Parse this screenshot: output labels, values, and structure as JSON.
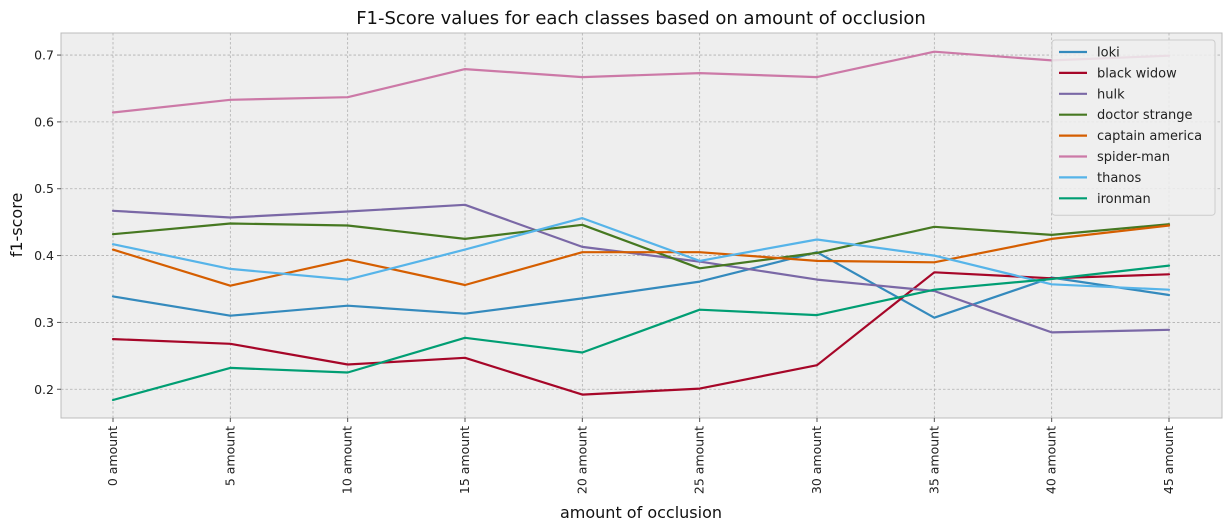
{
  "chart_data": {
    "type": "line",
    "title": "F1-Score values for each classes based on amount of occlusion",
    "xlabel": "amount of occlusion",
    "ylabel": "f1-score",
    "categories": [
      "0 amount",
      "5 amount",
      "10 amount",
      "15 amount",
      "20 amount",
      "25 amount",
      "30 amount",
      "35 amount",
      "40 amount",
      "45 amount"
    ],
    "ylim": [
      0.157,
      0.733
    ],
    "yticks": [
      0.2,
      0.3,
      0.4,
      0.5,
      0.6,
      0.7
    ],
    "ytick_labels": [
      "0.2",
      "0.3",
      "0.4",
      "0.5",
      "0.6",
      "0.7"
    ],
    "grid": true,
    "legend_position": "top-right",
    "series": [
      {
        "name": "loki",
        "color": "#348ABD",
        "values": [
          0.339,
          0.31,
          0.325,
          0.313,
          0.336,
          0.361,
          0.405,
          0.307,
          0.367,
          0.341
        ]
      },
      {
        "name": "black widow",
        "color": "#A60628",
        "values": [
          0.275,
          0.268,
          0.237,
          0.247,
          0.192,
          0.201,
          0.236,
          0.375,
          0.366,
          0.372
        ]
      },
      {
        "name": "hulk",
        "color": "#7A68A6",
        "values": [
          0.467,
          0.457,
          0.466,
          0.476,
          0.413,
          0.391,
          0.364,
          0.347,
          0.285,
          0.289
        ]
      },
      {
        "name": "doctor strange",
        "color": "#467821",
        "values": [
          0.432,
          0.448,
          0.445,
          0.425,
          0.446,
          0.381,
          0.404,
          0.443,
          0.431,
          0.447
        ]
      },
      {
        "name": "captain america",
        "color": "#D55E00",
        "values": [
          0.409,
          0.355,
          0.394,
          0.356,
          0.405,
          0.405,
          0.392,
          0.39,
          0.425,
          0.445
        ]
      },
      {
        "name": "spider-man",
        "color": "#CC79A7",
        "values": [
          0.614,
          0.633,
          0.637,
          0.679,
          0.667,
          0.673,
          0.667,
          0.705,
          0.692,
          0.699
        ]
      },
      {
        "name": "thanos",
        "color": "#56B4E9",
        "values": [
          0.417,
          0.38,
          0.364,
          0.409,
          0.456,
          0.392,
          0.424,
          0.4,
          0.357,
          0.349
        ]
      },
      {
        "name": "ironman",
        "color": "#009E73",
        "values": [
          0.184,
          0.232,
          0.225,
          0.277,
          0.255,
          0.319,
          0.311,
          0.349,
          0.365,
          0.385
        ]
      }
    ]
  }
}
